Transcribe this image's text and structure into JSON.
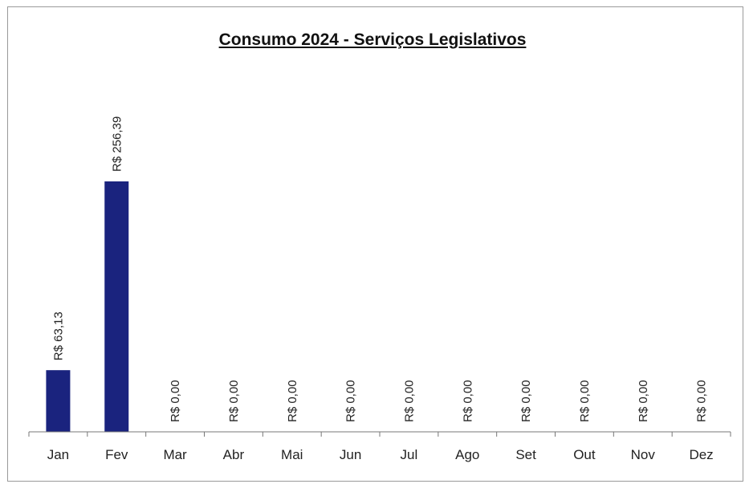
{
  "chart_data": {
    "type": "bar",
    "title": "Consumo 2024 - Serviços Legislativos",
    "categories": [
      "Jan",
      "Fev",
      "Mar",
      "Abr",
      "Mai",
      "Jun",
      "Jul",
      "Ago",
      "Set",
      "Out",
      "Nov",
      "Dez"
    ],
    "values": [
      63.13,
      256.39,
      0,
      0,
      0,
      0,
      0,
      0,
      0,
      0,
      0,
      0
    ],
    "data_labels": [
      "R$ 63,13",
      "R$ 256,39",
      "R$ 0,00",
      "R$ 0,00",
      "R$ 0,00",
      "R$ 0,00",
      "R$ 0,00",
      "R$ 0,00",
      "R$ 0,00",
      "R$ 0,00",
      "R$ 0,00",
      "R$ 0,00"
    ],
    "xlabel": "",
    "ylabel": "",
    "ylim": [
      0,
      300
    ],
    "grid": false,
    "legend": "none",
    "bar_color": "#1a237e"
  }
}
